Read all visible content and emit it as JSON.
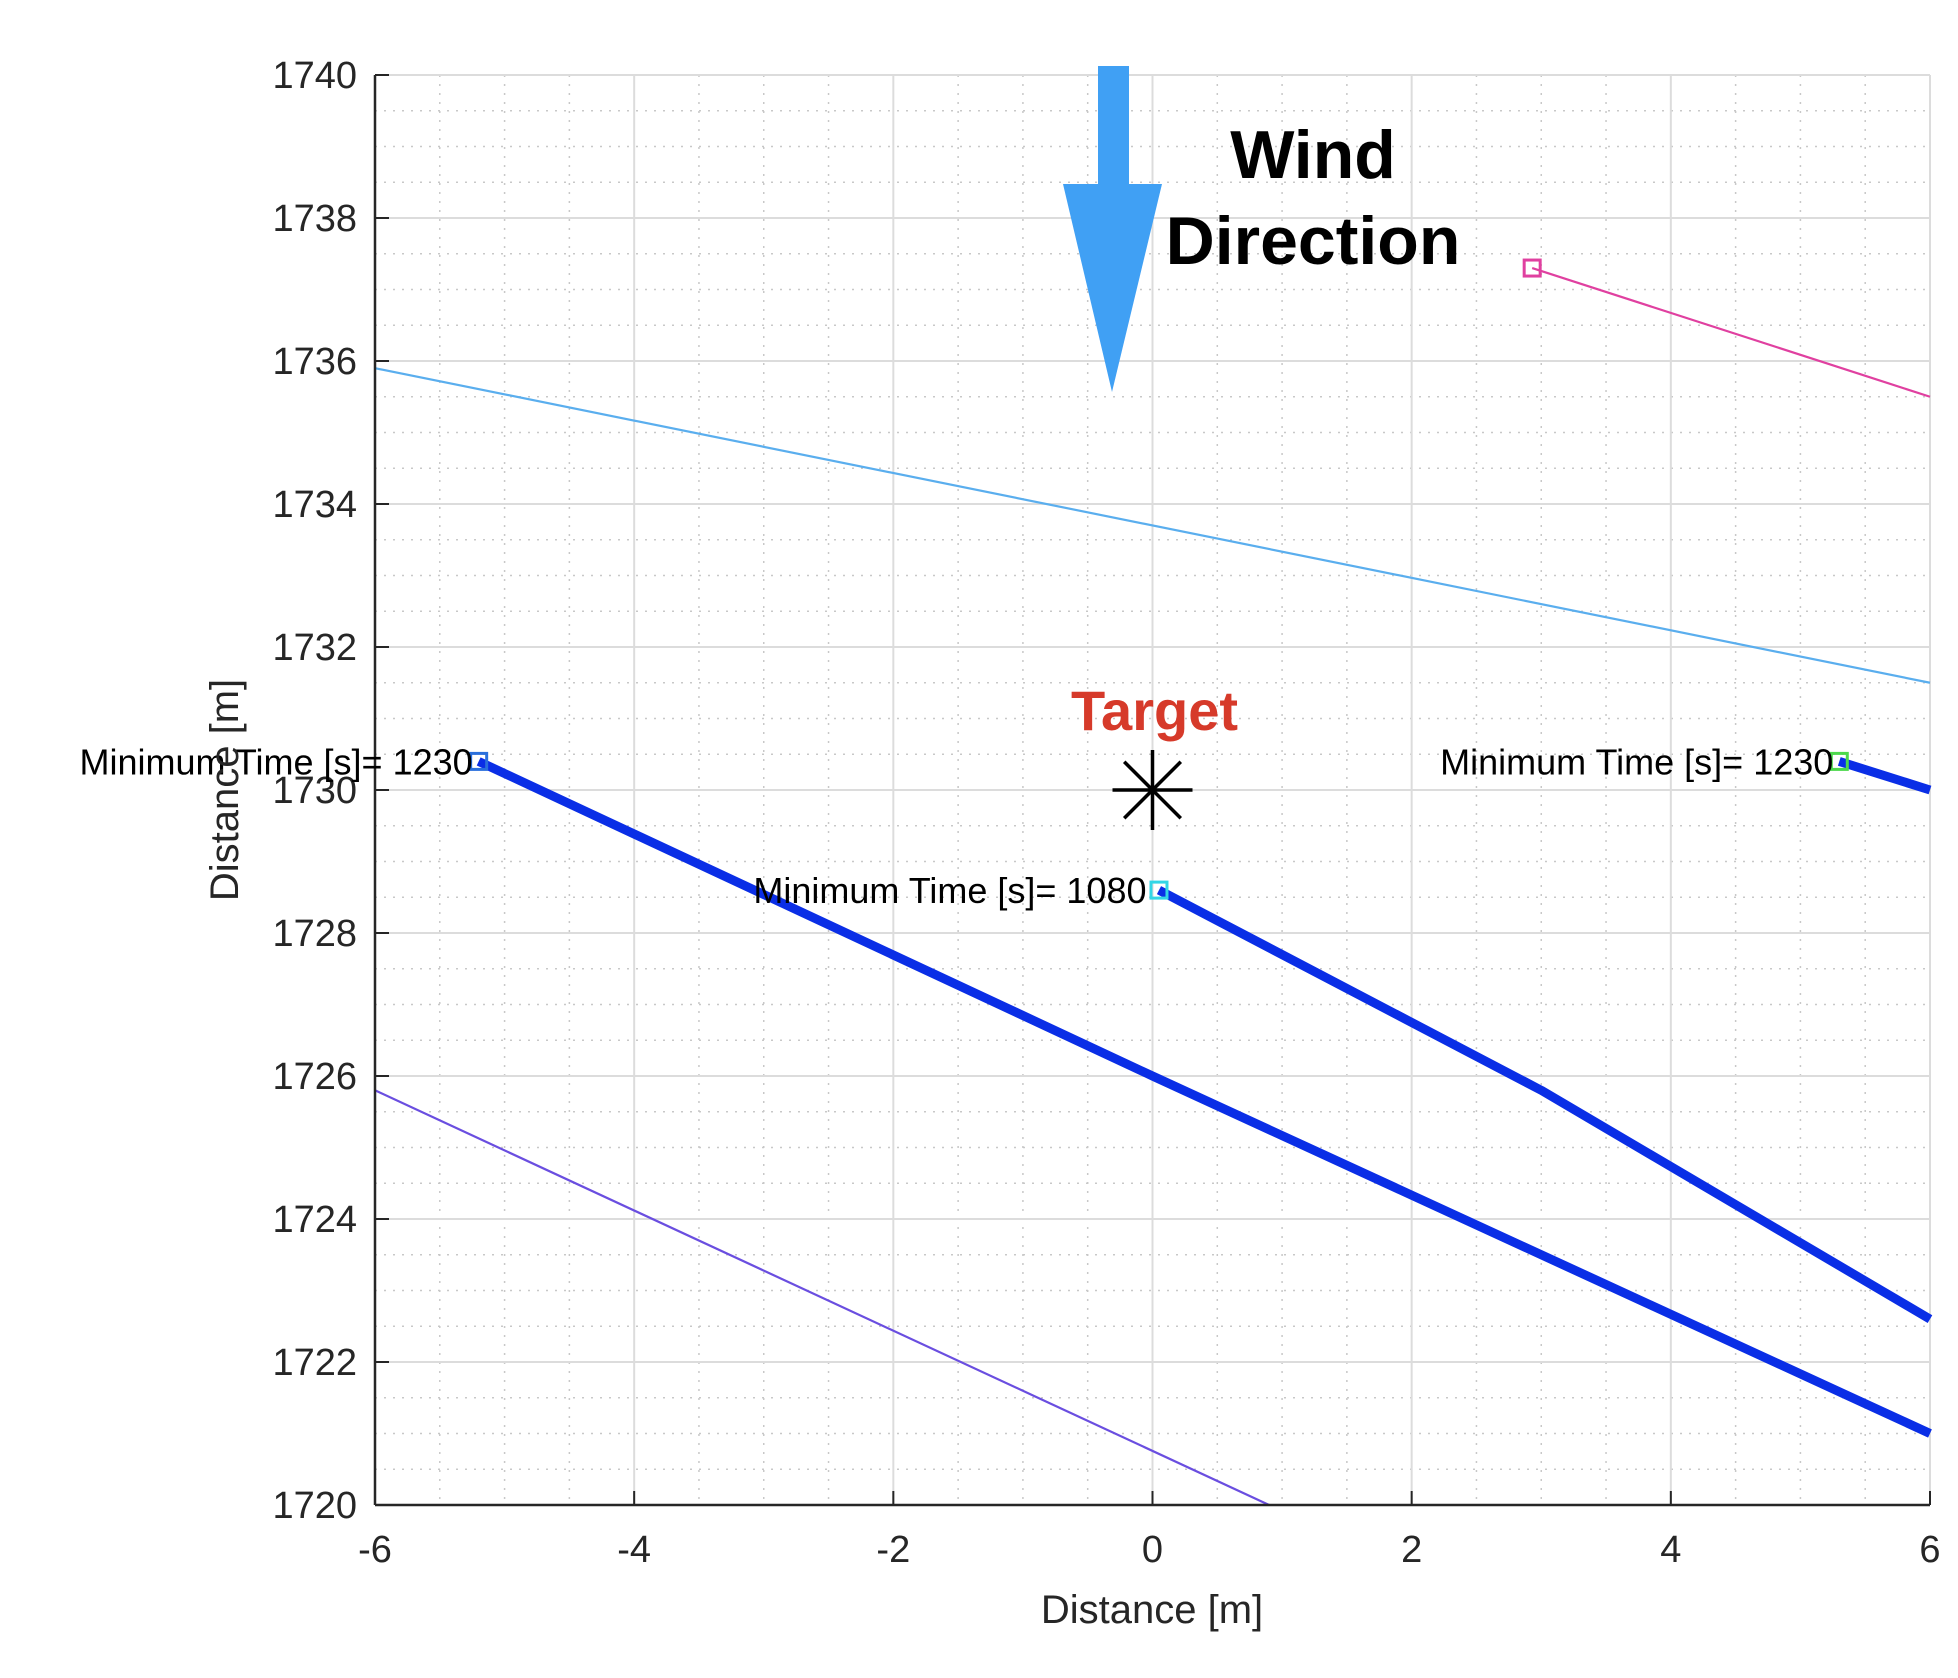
{
  "chart_data": {
    "type": "line",
    "title": "",
    "xlabel": "Distance [m]",
    "ylabel": "Distance [m]",
    "xlim": [
      -6,
      6
    ],
    "ylim": [
      1720,
      1740
    ],
    "xticks": [
      -6,
      -4,
      -2,
      0,
      2,
      4,
      6
    ],
    "xtick_labels": [
      "-6",
      "-4",
      "-2",
      "0",
      "2",
      "4",
      "6"
    ],
    "yticks": [
      1720,
      1722,
      1724,
      1726,
      1728,
      1730,
      1732,
      1734,
      1736,
      1738,
      1740
    ],
    "ytick_labels": [
      "1720",
      "1722",
      "1724",
      "1726",
      "1728",
      "1730",
      "1732",
      "1734",
      "1736",
      "1738",
      "1740"
    ],
    "grid": true,
    "minor_grid": true,
    "series": [
      {
        "color": "#e040a0",
        "line_width": "thin",
        "marker": "square",
        "x": [
          2.93,
          6.0
        ],
        "y": [
          1737.3,
          1735.5
        ]
      },
      {
        "color": "#5aaeee",
        "line_width": "thin",
        "x": [
          -6.0,
          6.0
        ],
        "y": [
          1735.9,
          1731.5
        ]
      },
      {
        "color": "#0a2ee6",
        "line_width": "thick",
        "marker": "square",
        "marker_color": "#2a6fdc",
        "x": [
          -5.2,
          0.0,
          6.0
        ],
        "y": [
          1730.4,
          1726.0,
          1721.0
        ]
      },
      {
        "color": "#0a2ee6",
        "line_width": "thick",
        "marker": "square",
        "marker_color": "#33d6e6",
        "x": [
          0.05,
          3.0,
          6.0
        ],
        "y": [
          1728.6,
          1725.8,
          1722.6
        ]
      },
      {
        "color": "#0a2ee6",
        "line_width": "thick",
        "marker": "square",
        "marker_color": "#4cd94c",
        "x": [
          5.3,
          6.0
        ],
        "y": [
          1730.4,
          1730.0
        ]
      },
      {
        "color": "#6a4ee0",
        "line_width": "thin",
        "x": [
          -6.0,
          0.9
        ],
        "y": [
          1725.8,
          1720.0
        ]
      }
    ],
    "annotations": [
      {
        "text": "Minimum Time [s]= 1230",
        "x": -5.2,
        "y": 1730.4,
        "anchor": "end"
      },
      {
        "text": "Minimum Time [s]= 1080",
        "x": 0.0,
        "y": 1728.6,
        "anchor": "end"
      },
      {
        "text": "Minimum Time [s]= 1230",
        "x": 5.3,
        "y": 1730.4,
        "anchor": "end"
      }
    ],
    "target": {
      "label": "Target",
      "x": 0.0,
      "y": 1730.0,
      "color": "#d63a2a"
    },
    "wind": {
      "lines": [
        "Wind",
        "Direction"
      ],
      "arrow_color": "#40a0f4"
    }
  }
}
